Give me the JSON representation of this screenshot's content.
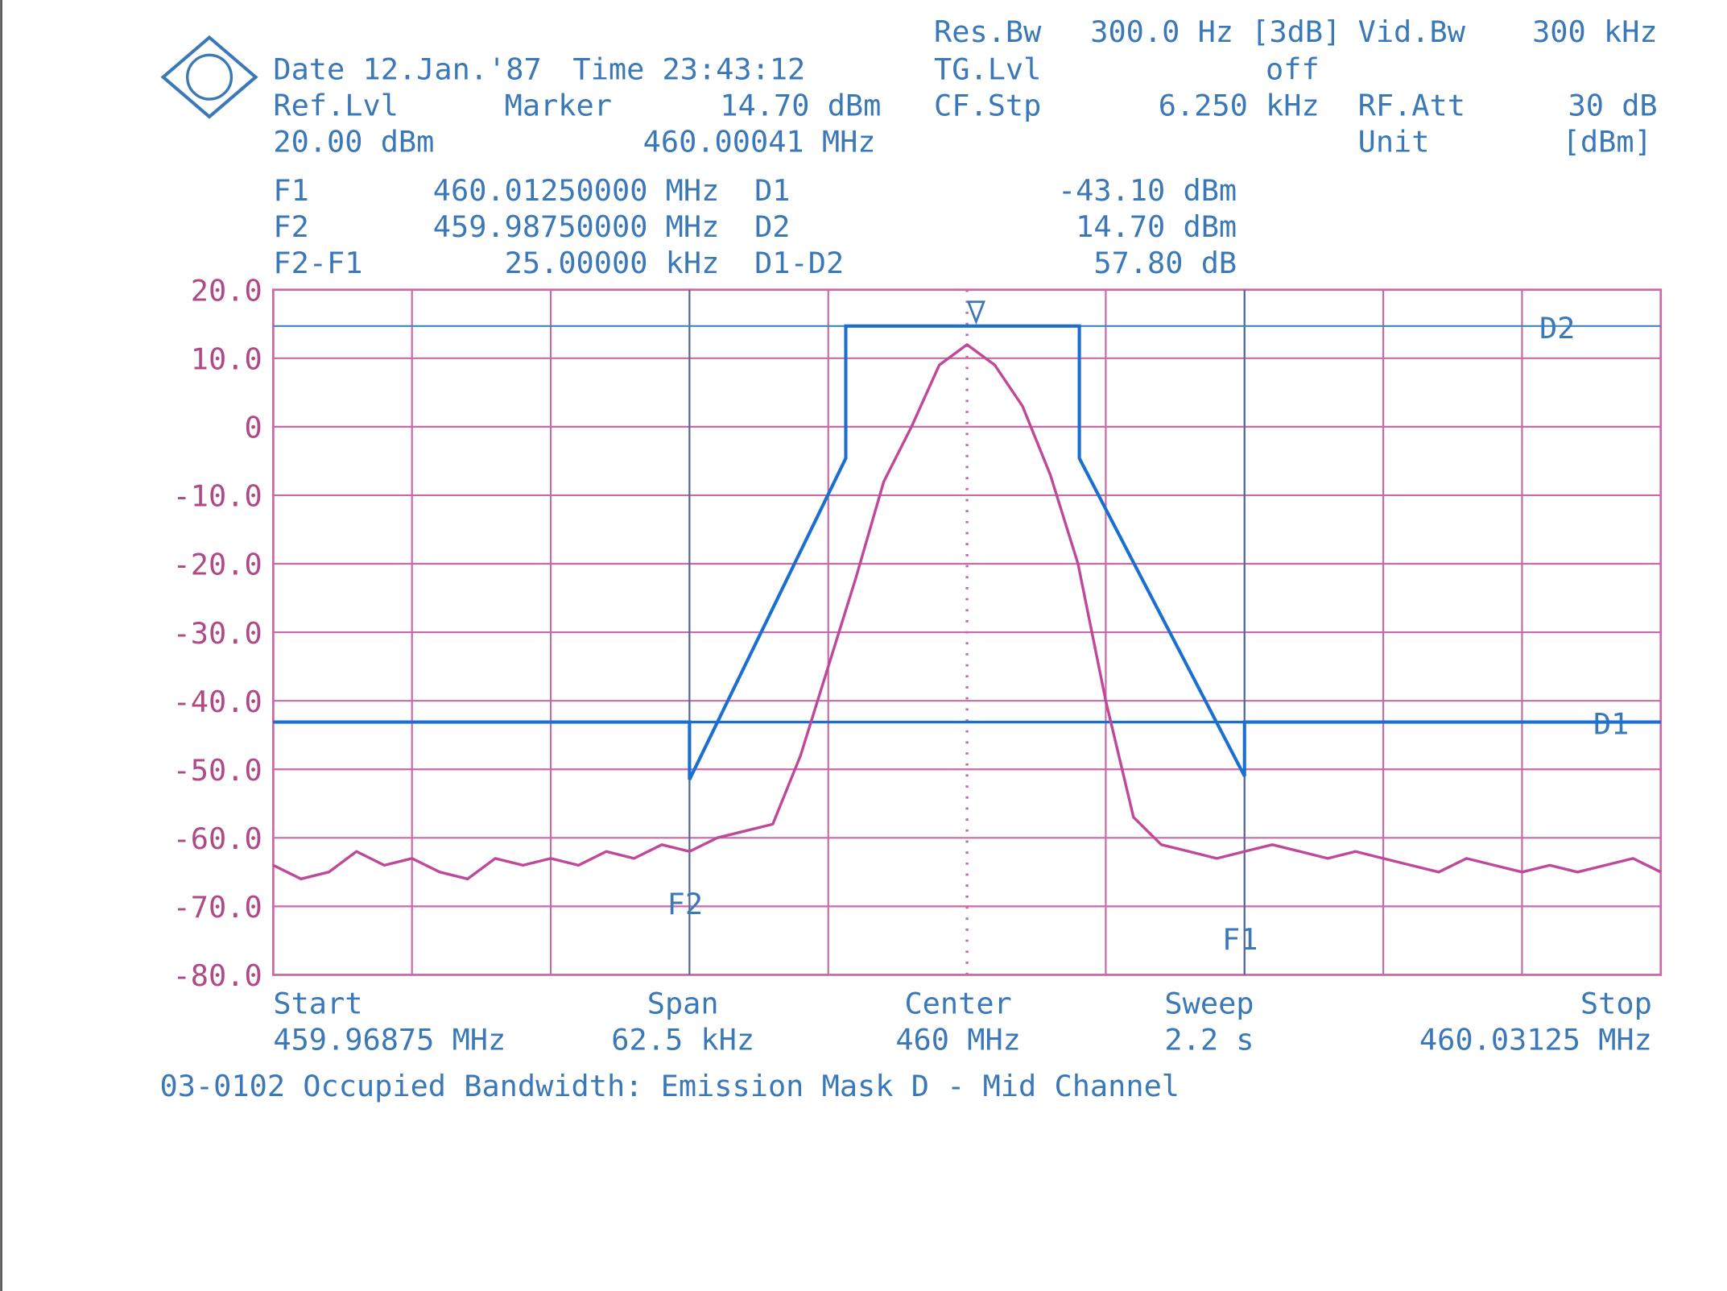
{
  "header": [
    "Date 12.Jan.'87",
    "Time 23:43:12",
    "Ref.Lvl",
    "Marker",
    "14.70 dBm",
    "20.00 dBm",
    "460.00041 MHz",
    "Res.Bw",
    "300.0 Hz [3dB]",
    "Vid.Bw",
    "300 kHz",
    "TG.Lvl",
    "off",
    "CF.Stp",
    "6.250 kHz",
    "RF.Att",
    "30 dB",
    "Unit",
    "[dBm]",
    "F1",
    "460.01250000 MHz",
    "D1",
    "-43.10 dBm",
    "F2",
    "459.98750000 MHz",
    "D2",
    "14.70 dBm",
    "F2-F1",
    "25.00000 kHz",
    "D1-D2",
    "57.80 dB"
  ],
  "bottom": [
    "Start",
    "459.96875 MHz",
    "Span",
    "62.5 kHz",
    "Center",
    "460 MHz",
    "Sweep",
    "2.2 s",
    "Stop",
    "460.03125 MHz"
  ],
  "footer": "03-0102 Occupied Bandwidth: Emission Mask D - Mid Channel",
  "chart_data": {
    "type": "line",
    "grid": true,
    "xlim": [
      459.96875,
      460.03125
    ],
    "ylim": [
      -80,
      20
    ],
    "xticks": [
      459.96875,
      459.975,
      459.98125,
      459.9875,
      459.99375,
      460,
      460.00625,
      460.0125,
      460.01875,
      460.025,
      460.03125
    ],
    "yticks": [
      {
        "value": 20,
        "label": "20.0"
      },
      {
        "value": 10,
        "label": "10.0"
      },
      0,
      {
        "value": -10,
        "label": "-10.0"
      },
      {
        "value": -20,
        "label": "-20.0"
      },
      {
        "value": -30,
        "label": "-30.0"
      },
      {
        "value": -40,
        "label": "-40.0"
      },
      {
        "value": -50,
        "label": "-50.0"
      },
      {
        "value": -60,
        "label": "-60.0"
      },
      {
        "value": -70,
        "label": "-70.0"
      },
      {
        "value": -80,
        "label": "-80.0"
      }
    ],
    "x": [
      459.96875,
      459.97,
      459.97125,
      459.9725,
      459.97375,
      459.975,
      459.97625,
      459.9775,
      459.97875,
      459.98,
      459.98125,
      459.9825,
      459.98375,
      459.985,
      459.98625,
      459.9875,
      459.98875,
      459.99,
      459.99125,
      459.9925,
      459.99375,
      459.995,
      459.99625,
      459.9975,
      459.99875,
      460,
      460.00125,
      460.0025,
      460.00375,
      460.005,
      460.00625,
      460.0075,
      460.00875,
      460.01,
      460.01125,
      460.0125,
      460.01375,
      460.015,
      460.01625,
      460.0175,
      460.01875,
      460.02,
      460.02125,
      460.0225,
      460.02375,
      460.025,
      460.02625,
      460.0275,
      460.02875,
      460.03,
      460.03125
    ],
    "series": [
      {
        "color": "#c0489a",
        "values": [
          -64,
          -66,
          -65,
          -62,
          -64,
          -63,
          -65,
          -66,
          -63,
          -64,
          -63,
          -64,
          -62,
          -63,
          -61,
          -62,
          -60,
          -59,
          -58,
          -48,
          -35,
          -22,
          -8,
          0,
          9,
          12,
          9,
          3,
          -7,
          -20,
          -40,
          -57,
          -61,
          -62,
          -63,
          -62,
          -61,
          -62,
          -63,
          -62,
          -63,
          -64,
          -65,
          -63,
          -64,
          -65,
          -64,
          -65,
          -64,
          -63,
          -65
        ]
      }
    ],
    "mask": {
      "color": "#1a6fd0",
      "x": [
        459.96875,
        459.9875,
        459.9875,
        459.99454,
        459.99454,
        460.00506,
        460.00506,
        460.0125,
        460.0125,
        460.03125
      ],
      "values": [
        -43.1,
        -43.1,
        -51.5,
        -4.6,
        14.7,
        14.7,
        -4.6,
        -51,
        -43.1,
        -43.1
      ]
    },
    "hlines": [
      {
        "label": "D1",
        "value": -43.1
      },
      {
        "label": "D2",
        "value": 14.7
      }
    ],
    "vlines": [
      {
        "label": "F2",
        "value": 459.9875
      },
      {
        "label": "F1",
        "value": 460.0125
      }
    ],
    "marker": {
      "x": 460.00041,
      "y": 14.7
    }
  }
}
